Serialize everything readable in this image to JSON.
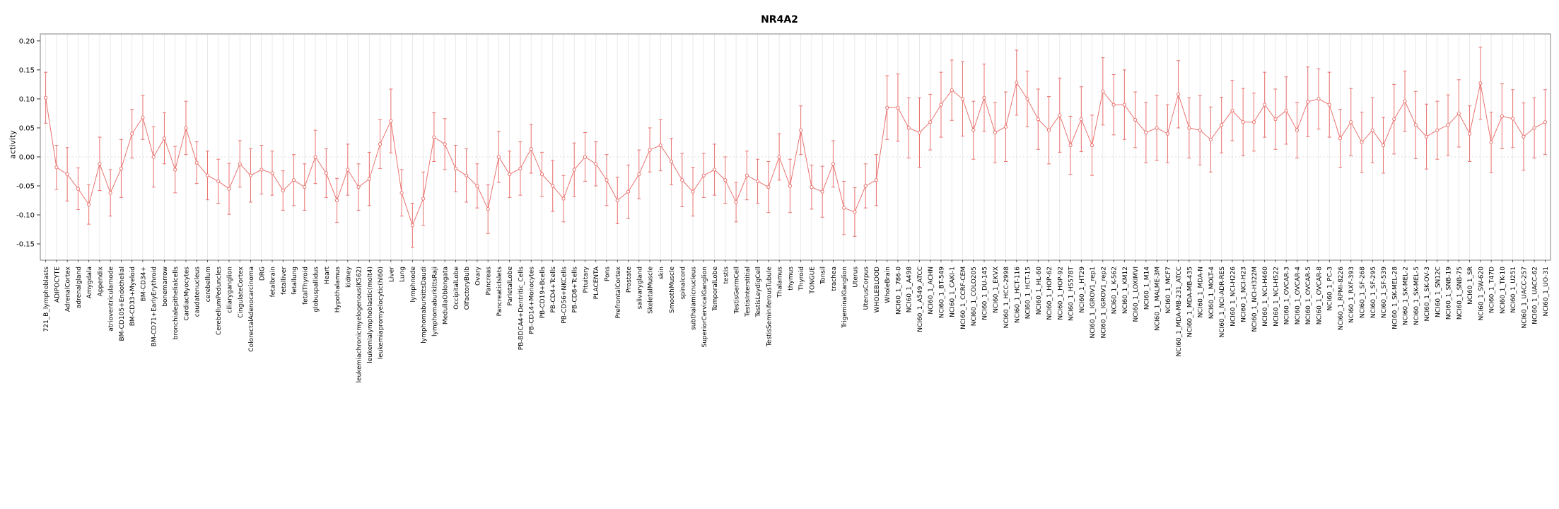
{
  "chart_data": {
    "type": "line",
    "title": "NR4A2",
    "xlabel": "",
    "ylabel": "activity",
    "ylim": [
      -0.15,
      0.2
    ],
    "yticks": [
      -0.15,
      -0.1,
      -0.05,
      0.0,
      0.05,
      0.1,
      0.15,
      0.2
    ],
    "grid": true,
    "legend": "none",
    "series_color": "#e8736f",
    "grid_color": "#e4e4e4",
    "categories": [
      "721_B_lymphoblasts",
      "ADIPOCYTE",
      "AdrenalCortex",
      "adrenalgland",
      "Amygdala",
      "Appendix",
      "atrioventricularnode",
      "BM-CD105+Endothelial",
      "BM-CD33+Myeloid",
      "BM-CD34+",
      "BM-CD71+EarlyErythroid",
      "bonemarrow",
      "bronchialepithelialcells",
      "CardiacMyocytes",
      "caudatenucleus",
      "cerebellum",
      "CerebellumPeduncles",
      "ciliaryganglion",
      "CingulateCortex",
      "ColorectalAdenocarcinoma",
      "DRG",
      "fetalbrain",
      "fetalliver",
      "fetallung",
      "fetalThyroid",
      "globuspallidus",
      "Heart",
      "Hypothalamus",
      "kidney",
      "leukemiachronicmyelogenous(K562)",
      "leukemialymphoblastic(molt4)",
      "leukemiapromyelocytic(hl60)",
      "Liver",
      "Lung",
      "lymphnode",
      "lymphomaburkittsDaudi",
      "lymphomaburkittsRaji",
      "MedullaOblongata",
      "OccipitalLobe",
      "OlfactoryBulb",
      "Ovary",
      "Pancreas",
      "PancreaticIslets",
      "ParietalLobe",
      "PB-BDCA4+Dentritic_Cells",
      "PB-CD14+Monocytes",
      "PB-CD19+Bcells",
      "PB-CD4+Tcells",
      "PB-CD56+NKCells",
      "PB-CD8+Tcells",
      "Pituitary",
      "PLACENTA",
      "Pons",
      "PrefrontalCortex",
      "Prostate",
      "salivarygland",
      "SkeletalMuscle",
      "skin",
      "SmoothMuscle",
      "spinalcord",
      "subthalamicnucleus",
      "SuperiorCervicalGanglion",
      "TemporalLobe",
      "testis",
      "TestisGermCell",
      "TestisInterstitial",
      "TestisLeydigCell",
      "TestisSeminiferousTubule",
      "Thalamus",
      "thymus",
      "Thyroid",
      "TONGUE",
      "Tonsil",
      "trachea",
      "TrigeminalGanglion",
      "Uterus",
      "UterusCorpus",
      "WHOLEBLOOD",
      "WholeBrain",
      "NCI60_1_786-0",
      "NCI60_1_A498",
      "NCI60_1_A549_ATCC",
      "NCI60_1_ACHN",
      "NCI60_1_BT-549",
      "NCI60_1_CAKI-1",
      "NCI60_1_CCRF-CEM",
      "NCI60_1_COLO205",
      "NCI60_1_DU-145",
      "NCI60_1_EKVX",
      "NCI60_1_HCC-2998",
      "NCI60_1_HCT-116",
      "NCI60_1_HCT-15",
      "NCI60_1_HL-60",
      "NCI60_1_HOP-62",
      "NCI60_1_HOP-92",
      "NCI60_1_HS578T",
      "NCI60_1_HT29",
      "NCI60_1_IGROV1_rep1",
      "NCI60_1_IGROV1_rep2",
      "NCI60_1_K-562",
      "NCI60_1_KM12",
      "NCI60_1_LOXIMVI",
      "NCI60_1_M14",
      "NCI60_1_MALME-3M",
      "NCI60_1_MCF7",
      "NCI60_1_MDA-MB-231_ATCC",
      "NCI60_1_MDA-MB-435",
      "NCI60_1_MDA-N",
      "NCI60_1_MOLT-4",
      "NCI60_1_NCI-ADR-RES",
      "NCI60_1_NCI-H226",
      "NCI60_1_NCI-H23",
      "NCI60_1_NCI-H322M",
      "NCI60_1_NCI-H460",
      "NCI60_1_NCI-H522",
      "NCI60_1_OVCAR-3",
      "NCI60_1_OVCAR-4",
      "NCI60_1_OVCAR-5",
      "NCI60_1_OVCAR-8",
      "NCI60_1_PC-3",
      "NCI60_1_RPMI-8226",
      "NCI60_1_RXF-393",
      "NCI60_1_SF-268",
      "NCI60_1_SF-295",
      "NCI60_1_SF-539",
      "NCI60_1_SK-MEL-28",
      "NCI60_1_SK-MEL-2",
      "NCI60_1_SK-MEL-5",
      "NCI60_1_SK-OV-3",
      "NCI60_1_SN12C",
      "NCI60_1_SNB-19",
      "NCI60_1_SNB-75",
      "NCI60_1_SR",
      "NCI60_1_SW-620",
      "NCI60_1_T47D",
      "NCI60_1_TK-10",
      "NCI60_1_U251",
      "NCI60_1_UACC-257",
      "NCI60_1_UACC-62",
      "NCI60_1_UO-31"
    ],
    "values": [
      0.102,
      -0.018,
      -0.03,
      -0.055,
      -0.082,
      -0.012,
      -0.062,
      -0.02,
      0.04,
      0.068,
      0.0,
      0.032,
      -0.022,
      0.05,
      -0.01,
      -0.032,
      -0.042,
      -0.055,
      -0.012,
      -0.032,
      -0.022,
      -0.028,
      -0.058,
      -0.04,
      -0.052,
      0.0,
      -0.028,
      -0.075,
      -0.022,
      -0.052,
      -0.038,
      0.022,
      0.062,
      -0.062,
      -0.118,
      -0.072,
      0.034,
      0.022,
      -0.02,
      -0.032,
      -0.05,
      -0.09,
      0.0,
      -0.03,
      -0.02,
      0.014,
      -0.03,
      -0.05,
      -0.072,
      -0.022,
      0.0,
      -0.012,
      -0.04,
      -0.075,
      -0.06,
      -0.03,
      0.012,
      0.02,
      -0.008,
      -0.04,
      -0.06,
      -0.032,
      -0.022,
      -0.04,
      -0.078,
      -0.032,
      -0.042,
      -0.052,
      0.0,
      -0.05,
      0.046,
      -0.052,
      -0.06,
      -0.012,
      -0.088,
      -0.095,
      -0.05,
      -0.04,
      0.085,
      0.085,
      0.05,
      0.042,
      0.06,
      0.09,
      0.115,
      0.1,
      0.046,
      0.102,
      0.042,
      0.052,
      0.128,
      0.1,
      0.065,
      0.046,
      0.072,
      0.02,
      0.065,
      0.02,
      0.113,
      0.09,
      0.09,
      0.064,
      0.042,
      0.05,
      0.04,
      0.108,
      0.05,
      0.046,
      0.03,
      0.055,
      0.08,
      0.06,
      0.06,
      0.09,
      0.065,
      0.08,
      0.046,
      0.095,
      0.1,
      0.09,
      0.032,
      0.06,
      0.025,
      0.046,
      0.02,
      0.065,
      0.096,
      0.055,
      0.035,
      0.046,
      0.055,
      0.075,
      0.04,
      0.127,
      0.025,
      0.07,
      0.066,
      0.035,
      0.05,
      0.06
    ],
    "errors": [
      0.044,
      0.038,
      0.046,
      0.036,
      0.034,
      0.046,
      0.04,
      0.05,
      0.042,
      0.038,
      0.052,
      0.044,
      0.04,
      0.046,
      0.036,
      0.042,
      0.038,
      0.044,
      0.04,
      0.046,
      0.042,
      0.038,
      0.034,
      0.044,
      0.04,
      0.046,
      0.042,
      0.038,
      0.044,
      0.04,
      0.046,
      0.042,
      0.055,
      0.04,
      0.038,
      0.046,
      0.042,
      0.044,
      0.04,
      0.046,
      0.038,
      0.042,
      0.044,
      0.04,
      0.046,
      0.042,
      0.038,
      0.044,
      0.04,
      0.046,
      0.042,
      0.038,
      0.044,
      0.04,
      0.046,
      0.042,
      0.038,
      0.044,
      0.04,
      0.046,
      0.042,
      0.038,
      0.044,
      0.04,
      0.034,
      0.042,
      0.038,
      0.044,
      0.04,
      0.046,
      0.042,
      0.038,
      0.044,
      0.04,
      0.046,
      0.042,
      0.038,
      0.044,
      0.055,
      0.058,
      0.052,
      0.06,
      0.048,
      0.056,
      0.052,
      0.064,
      0.05,
      0.058,
      0.052,
      0.06,
      0.056,
      0.048,
      0.052,
      0.058,
      0.064,
      0.05,
      0.056,
      0.052,
      0.058,
      0.052,
      0.06,
      0.048,
      0.052,
      0.056,
      0.05,
      0.058,
      0.052,
      0.06,
      0.056,
      0.048,
      0.052,
      0.058,
      0.05,
      0.056,
      0.052,
      0.058,
      0.048,
      0.06,
      0.052,
      0.056,
      0.05,
      0.058,
      0.052,
      0.056,
      0.048,
      0.06,
      0.052,
      0.058,
      0.056,
      0.05,
      0.052,
      0.058,
      0.048,
      0.062,
      0.052,
      0.056,
      0.05,
      0.058,
      0.052,
      0.056
    ]
  }
}
